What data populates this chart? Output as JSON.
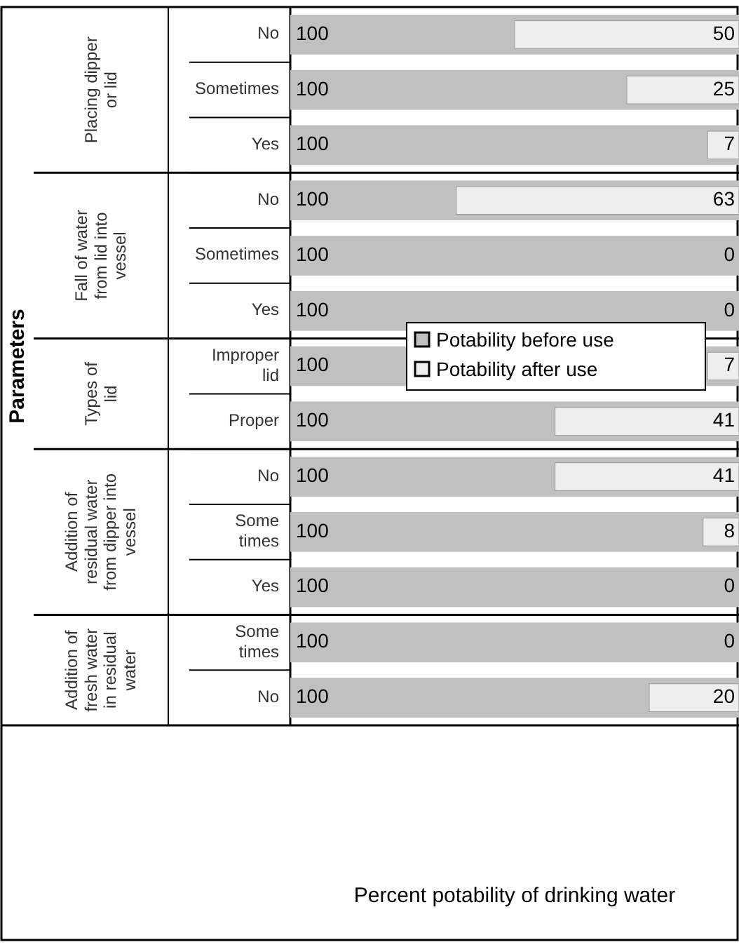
{
  "chart_data": {
    "type": "bar",
    "orientation": "horizontal",
    "categories": [
      "No",
      "Sometimes",
      "Yes",
      "No",
      "Sometimes",
      "Yes",
      "Improper lid",
      "Proper",
      "No",
      "Some times",
      "Yes",
      "Some times",
      "No"
    ],
    "series": [
      {
        "name": "Potability before use",
        "color": "#c0c0c0",
        "values": [
          100,
          100,
          100,
          100,
          100,
          100,
          100,
          100,
          100,
          100,
          100,
          100,
          100
        ]
      },
      {
        "name": "Potability after use",
        "color": "#eeeeee",
        "values": [
          50,
          25,
          7,
          63,
          0,
          0,
          7,
          41,
          41,
          8,
          0,
          0,
          20
        ]
      }
    ],
    "annotations": [
      "Placing dipper or lid",
      "Fall of water from lid into vessel",
      "Types of lid",
      "Addition of residual water from dipper into vessel",
      "Addition of fresh water in residual water",
      "Parameters",
      "Percent potability of drinking water"
    ],
    "data_labels": true,
    "legend": "right"
  }
}
